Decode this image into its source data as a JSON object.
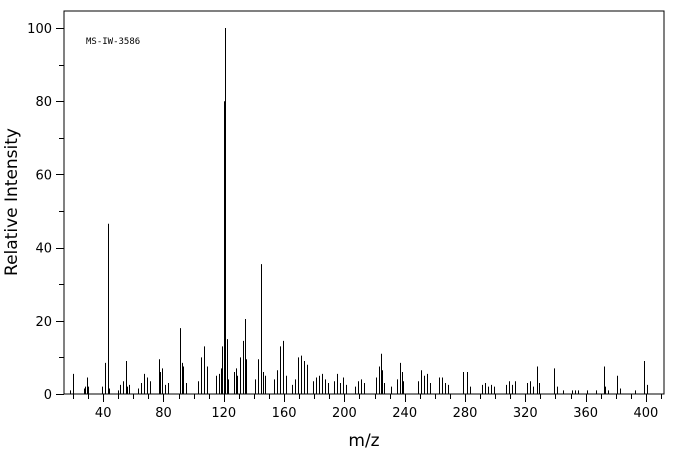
{
  "chart_data": {
    "type": "bar",
    "annotation": "MS-IW-3586",
    "xlabel": "m/z",
    "ylabel": "Relative Intensity",
    "xlim": [
      14,
      412
    ],
    "ylim": [
      0,
      100
    ],
    "x_ticks": [
      40,
      80,
      120,
      160,
      200,
      240,
      280,
      320,
      360,
      400
    ],
    "y_ticks": [
      0,
      20,
      40,
      60,
      80,
      100
    ],
    "grid": false,
    "series": [
      {
        "peaks": [
          [
            18,
            1
          ],
          [
            20,
            5.5
          ],
          [
            27,
            1.5
          ],
          [
            28,
            2
          ],
          [
            29,
            4.5
          ],
          [
            30,
            2
          ],
          [
            39,
            2
          ],
          [
            41,
            8.5
          ],
          [
            43,
            46.5
          ],
          [
            44,
            1.5
          ],
          [
            50,
            1
          ],
          [
            51,
            2.5
          ],
          [
            53,
            3.5
          ],
          [
            55,
            9
          ],
          [
            56,
            2
          ],
          [
            57,
            2.5
          ],
          [
            63,
            1.5
          ],
          [
            65,
            3
          ],
          [
            67,
            5.5
          ],
          [
            69,
            4.5
          ],
          [
            71,
            3.5
          ],
          [
            77,
            9.5
          ],
          [
            78,
            6
          ],
          [
            79,
            7
          ],
          [
            81,
            2.5
          ],
          [
            83,
            3
          ],
          [
            91,
            18
          ],
          [
            92,
            8.5
          ],
          [
            93,
            7.5
          ],
          [
            95,
            3
          ],
          [
            103,
            3.5
          ],
          [
            105,
            10
          ],
          [
            107,
            13
          ],
          [
            109,
            7.5
          ],
          [
            115,
            5
          ],
          [
            117,
            5.5
          ],
          [
            118,
            7
          ],
          [
            119,
            13
          ],
          [
            120,
            80
          ],
          [
            121,
            100
          ],
          [
            122,
            15
          ],
          [
            123,
            4
          ],
          [
            127,
            6
          ],
          [
            128,
            7
          ],
          [
            129,
            5
          ],
          [
            131,
            10
          ],
          [
            133,
            14.5
          ],
          [
            134,
            20.5
          ],
          [
            135,
            9.5
          ],
          [
            141,
            4
          ],
          [
            143,
            9.5
          ],
          [
            145,
            35.5
          ],
          [
            146,
            6
          ],
          [
            147,
            5
          ],
          [
            153,
            4
          ],
          [
            155,
            6.5
          ],
          [
            157,
            13
          ],
          [
            159,
            14.5
          ],
          [
            161,
            5
          ],
          [
            165,
            2.5
          ],
          [
            167,
            4
          ],
          [
            169,
            10
          ],
          [
            171,
            10.5
          ],
          [
            173,
            9
          ],
          [
            175,
            8
          ],
          [
            179,
            3.5
          ],
          [
            181,
            4.5
          ],
          [
            183,
            5
          ],
          [
            185,
            5.5
          ],
          [
            187,
            4
          ],
          [
            189,
            3
          ],
          [
            193,
            3.5
          ],
          [
            195,
            5.5
          ],
          [
            197,
            3
          ],
          [
            199,
            4.5
          ],
          [
            201,
            2.5
          ],
          [
            207,
            2
          ],
          [
            209,
            3.5
          ],
          [
            211,
            4
          ],
          [
            213,
            3
          ],
          [
            221,
            4.5
          ],
          [
            223,
            7.5
          ],
          [
            224,
            11
          ],
          [
            225,
            6.5
          ],
          [
            226,
            3
          ],
          [
            231,
            2
          ],
          [
            235,
            4
          ],
          [
            237,
            8.5
          ],
          [
            238,
            6
          ],
          [
            239,
            3.5
          ],
          [
            249,
            3.5
          ],
          [
            251,
            6.5
          ],
          [
            253,
            5
          ],
          [
            255,
            5.5
          ],
          [
            257,
            3
          ],
          [
            263,
            4.5
          ],
          [
            265,
            4.5
          ],
          [
            267,
            3
          ],
          [
            269,
            2.5
          ],
          [
            279,
            6
          ],
          [
            281,
            6
          ],
          [
            283,
            2
          ],
          [
            291,
            2.5
          ],
          [
            293,
            3
          ],
          [
            295,
            2
          ],
          [
            297,
            2.5
          ],
          [
            299,
            2
          ],
          [
            307,
            2.5
          ],
          [
            309,
            3.5
          ],
          [
            311,
            2.5
          ],
          [
            313,
            3.5
          ],
          [
            321,
            3
          ],
          [
            323,
            3.5
          ],
          [
            325,
            2
          ],
          [
            328,
            7.5
          ],
          [
            329,
            3
          ],
          [
            339,
            7
          ],
          [
            341,
            2
          ],
          [
            345,
            1
          ],
          [
            351,
            1
          ],
          [
            353,
            1
          ],
          [
            355,
            1
          ],
          [
            361,
            1
          ],
          [
            367,
            1
          ],
          [
            372,
            7.5
          ],
          [
            373,
            2
          ],
          [
            375,
            1
          ],
          [
            381,
            5
          ],
          [
            383,
            1.5
          ],
          [
            393,
            1
          ],
          [
            399,
            9
          ],
          [
            401,
            2.5
          ]
        ]
      }
    ]
  }
}
